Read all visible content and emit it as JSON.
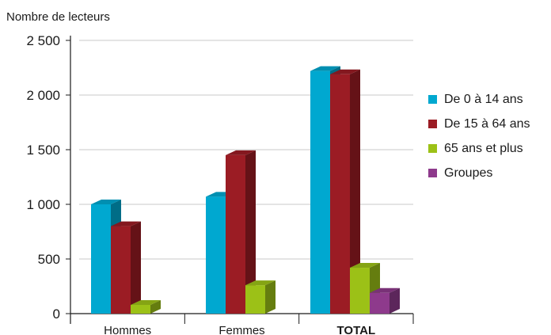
{
  "chart_data": {
    "type": "bar",
    "style": "3d-clustered",
    "ylabel": "Nombre de lecteurs",
    "categories": [
      "Hommes",
      "Femmes",
      "TOTAL"
    ],
    "ylim": [
      0,
      2500
    ],
    "yticks": [
      0,
      500,
      1000,
      1500,
      2000,
      2500
    ],
    "ytick_labels": [
      "0",
      "500",
      "1 000",
      "1 500",
      "2 000",
      "2 500"
    ],
    "grid": true,
    "legend_position": "right",
    "series": [
      {
        "name": "De 0 à 14 ans",
        "color": "#00a8d0",
        "values": [
          1000,
          1070,
          2220
        ]
      },
      {
        "name": "De 15 à 64 ans",
        "color": "#9b1c24",
        "values": [
          800,
          1450,
          2190
        ]
      },
      {
        "name": "65 ans et plus",
        "color": "#9cc117",
        "values": [
          80,
          260,
          420
        ]
      },
      {
        "name": "Groupes",
        "color": "#8e3a8c",
        "values": [
          0,
          0,
          190
        ]
      }
    ]
  }
}
